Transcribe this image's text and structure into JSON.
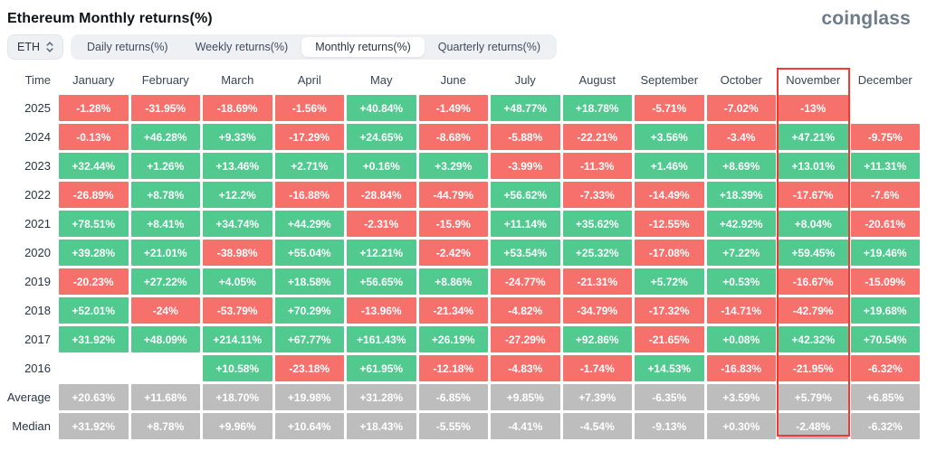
{
  "header": {
    "title": "Ethereum Monthly returns(%)",
    "logo": "coinglass"
  },
  "toolbar": {
    "symbol_select": {
      "value": "ETH",
      "icon": "updown-icon"
    },
    "tabs": [
      {
        "label": "Daily returns(%)",
        "active": false
      },
      {
        "label": "Weekly returns(%)",
        "active": false
      },
      {
        "label": "Monthly returns(%)",
        "active": true
      },
      {
        "label": "Quarterly returns(%)",
        "active": false
      }
    ]
  },
  "colors": {
    "positive": "#52c98e",
    "negative": "#f7716c",
    "summary": "#bdbdbd",
    "highlight_border": "#f23a35"
  },
  "chart_data": {
    "type": "heatmap",
    "title": "Ethereum Monthly returns(%)",
    "columns": [
      "Time",
      "January",
      "February",
      "March",
      "April",
      "May",
      "June",
      "July",
      "August",
      "September",
      "October",
      "November",
      "December"
    ],
    "highlighted_column": "November",
    "rows": [
      {
        "label": "2025",
        "type": "year",
        "values": [
          "-1.28%",
          "-31.95%",
          "-18.69%",
          "-1.56%",
          "+40.84%",
          "-1.49%",
          "+48.77%",
          "+18.78%",
          "-5.71%",
          "-7.02%",
          "-13%",
          ""
        ]
      },
      {
        "label": "2024",
        "type": "year",
        "values": [
          "-0.13%",
          "+46.28%",
          "+9.33%",
          "-17.29%",
          "+24.65%",
          "-8.68%",
          "-5.88%",
          "-22.21%",
          "+3.56%",
          "-3.4%",
          "+47.21%",
          "-9.75%"
        ]
      },
      {
        "label": "2023",
        "type": "year",
        "values": [
          "+32.44%",
          "+1.26%",
          "+13.46%",
          "+2.71%",
          "+0.16%",
          "+3.29%",
          "-3.99%",
          "-11.3%",
          "+1.46%",
          "+8.69%",
          "+13.01%",
          "+11.31%"
        ]
      },
      {
        "label": "2022",
        "type": "year",
        "values": [
          "-26.89%",
          "+8.78%",
          "+12.2%",
          "-16.88%",
          "-28.84%",
          "-44.79%",
          "+56.62%",
          "-7.33%",
          "-14.49%",
          "+18.39%",
          "-17.67%",
          "-7.6%"
        ]
      },
      {
        "label": "2021",
        "type": "year",
        "values": [
          "+78.51%",
          "+8.41%",
          "+34.74%",
          "+44.29%",
          "-2.31%",
          "-15.9%",
          "+11.14%",
          "+35.62%",
          "-12.55%",
          "+42.92%",
          "+8.04%",
          "-20.61%"
        ]
      },
      {
        "label": "2020",
        "type": "year",
        "values": [
          "+39.28%",
          "+21.01%",
          "-38.98%",
          "+55.04%",
          "+12.21%",
          "-2.42%",
          "+53.54%",
          "+25.32%",
          "-17.08%",
          "+7.22%",
          "+59.45%",
          "+19.46%"
        ]
      },
      {
        "label": "2019",
        "type": "year",
        "values": [
          "-20.23%",
          "+27.22%",
          "+4.05%",
          "+18.58%",
          "+56.65%",
          "+8.86%",
          "-24.77%",
          "-21.31%",
          "+5.72%",
          "+0.53%",
          "-16.67%",
          "-15.09%"
        ]
      },
      {
        "label": "2018",
        "type": "year",
        "values": [
          "+52.01%",
          "-24%",
          "-53.79%",
          "+70.29%",
          "-13.96%",
          "-21.34%",
          "-4.82%",
          "-34.79%",
          "-17.32%",
          "-14.71%",
          "-42.79%",
          "+19.68%"
        ]
      },
      {
        "label": "2017",
        "type": "year",
        "values": [
          "+31.92%",
          "+48.09%",
          "+214.11%",
          "+67.77%",
          "+161.43%",
          "+26.19%",
          "-27.29%",
          "+92.86%",
          "-21.65%",
          "+0.08%",
          "+42.32%",
          "+70.54%"
        ]
      },
      {
        "label": "2016",
        "type": "year",
        "values": [
          "",
          "",
          "+10.58%",
          "-23.18%",
          "+61.95%",
          "-12.18%",
          "-4.83%",
          "-1.74%",
          "+14.53%",
          "-16.83%",
          "-21.95%",
          "-6.32%"
        ]
      },
      {
        "label": "Average",
        "type": "summary",
        "values": [
          "+20.63%",
          "+11.68%",
          "+18.70%",
          "+19.98%",
          "+31.28%",
          "-6.85%",
          "+9.85%",
          "+7.39%",
          "-6.35%",
          "+3.59%",
          "+5.79%",
          "+6.85%"
        ]
      },
      {
        "label": "Median",
        "type": "summary",
        "values": [
          "+31.92%",
          "+8.78%",
          "+9.96%",
          "+10.64%",
          "+18.43%",
          "-5.55%",
          "-4.41%",
          "-4.54%",
          "-9.13%",
          "+0.30%",
          "-2.48%",
          "-6.32%"
        ]
      }
    ]
  }
}
